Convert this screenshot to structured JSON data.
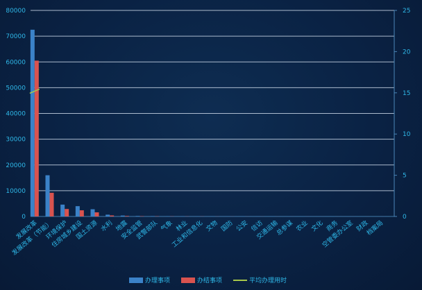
{
  "chart_data": {
    "type": "bar",
    "categories": [
      "发展改革",
      "发展改革（节能）",
      "环境保护",
      "住房城乡建设",
      "国土资源",
      "水利",
      "地震",
      "安全监管",
      "武警部队",
      "气象",
      "林业",
      "工业和信息化",
      "文物",
      "国防",
      "公安",
      "信访",
      "交通运输",
      "总参谋",
      "农业",
      "文化",
      "商务",
      "空管委办公室",
      "财政",
      "档案局"
    ],
    "series": [
      {
        "name": "办理事项",
        "color": "#3b82c8",
        "values": [
          72500,
          16000,
          4600,
          4000,
          2800,
          700,
          350,
          200,
          150,
          100,
          80,
          60,
          50,
          40,
          30,
          30,
          25,
          20,
          20,
          15,
          15,
          10,
          10,
          10
        ]
      },
      {
        "name": "办结事项",
        "color": "#d9534f",
        "values": [
          60500,
          9200,
          2900,
          2400,
          1600,
          400,
          200,
          120,
          90,
          60,
          50,
          40,
          30,
          25,
          20,
          20,
          15,
          12,
          12,
          10,
          10,
          8,
          8,
          8
        ]
      },
      {
        "name": "平均办理用时",
        "color": "#a8c84a",
        "axis": "right",
        "values": [
          15.2,
          null,
          null,
          null,
          null,
          null,
          null,
          null,
          null,
          null,
          null,
          null,
          null,
          null,
          null,
          null,
          null,
          null,
          null,
          null,
          null,
          null,
          null,
          null
        ]
      }
    ],
    "ylim_left": [
      0,
      80000
    ],
    "left_ticks": [
      "0",
      "10000",
      "20000",
      "30000",
      "40000",
      "50000",
      "60000",
      "70000",
      "80000"
    ],
    "ylim_right": [
      0,
      25
    ],
    "right_ticks": [
      "0",
      "5",
      "10",
      "15",
      "20",
      "25"
    ],
    "legend_position": "bottom",
    "grid": true
  },
  "legend": {
    "items": [
      {
        "label": "办理事项",
        "color": "#3b82c8"
      },
      {
        "label": "办结事项",
        "color": "#d9534f"
      },
      {
        "label": "平均办理用时",
        "color": "#a8c84a"
      }
    ]
  }
}
